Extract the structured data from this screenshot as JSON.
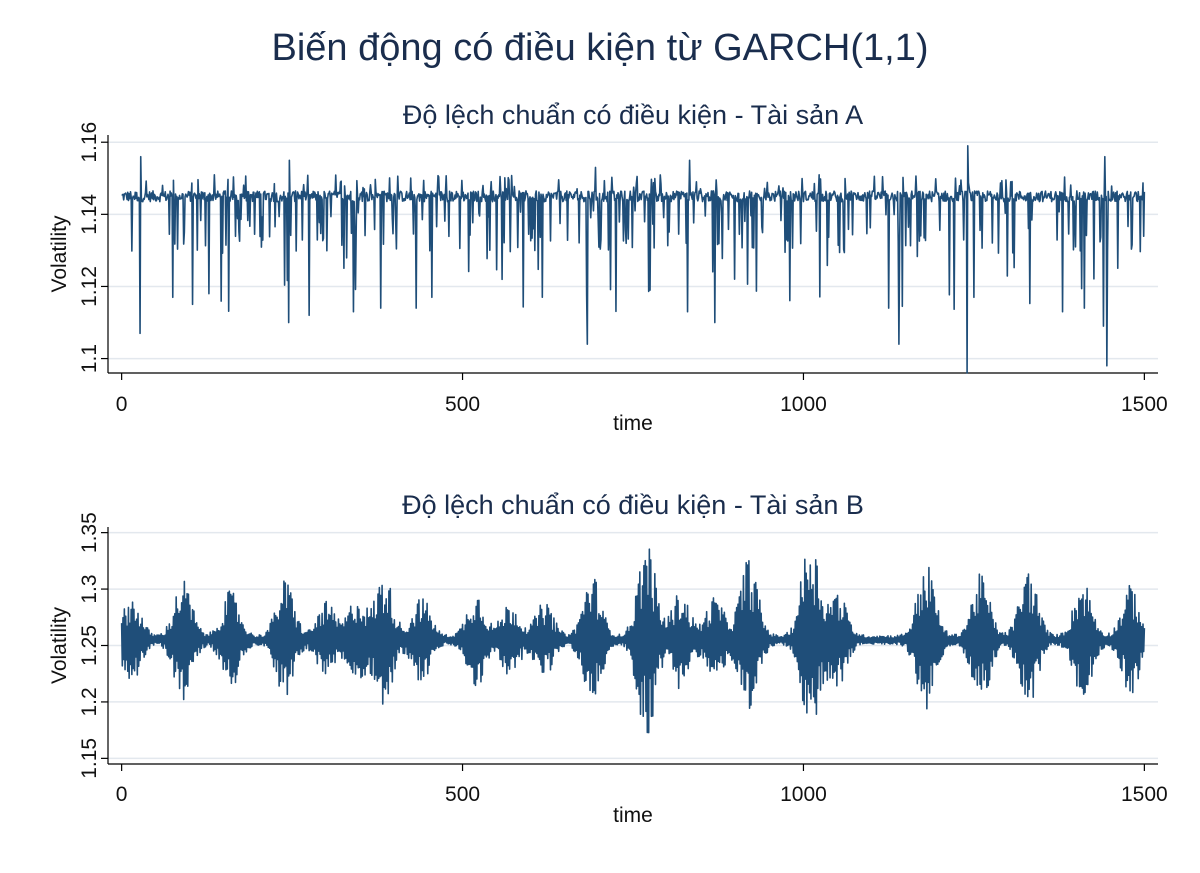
{
  "title": "Biến động có điều kiện từ GARCH(1,1)",
  "chart_data": [
    {
      "type": "line",
      "title": "Độ lệch chuẩn có điều kiện - Tài sản A",
      "xlabel": "time",
      "ylabel": "Volatility",
      "xlim": [
        -20,
        1520
      ],
      "ylim": [
        1.096,
        1.162
      ],
      "xticks": [
        0,
        500,
        1000,
        1500
      ],
      "xtick_labels": [
        "0",
        "500",
        "1000",
        "1500"
      ],
      "yticks": [
        1.1,
        1.12,
        1.14,
        1.16
      ],
      "ytick_labels": [
        "1.1",
        "1.12",
        "1.14",
        "1.16"
      ],
      "grid": true,
      "color": "#1f4e79",
      "baseline": 1.145,
      "spikes": [
        {
          "x": 27,
          "y": 1.107
        },
        {
          "x": 28,
          "y": 1.156
        },
        {
          "x": 75,
          "y": 1.117
        },
        {
          "x": 128,
          "y": 1.118
        },
        {
          "x": 245,
          "y": 1.11
        },
        {
          "x": 246,
          "y": 1.155
        },
        {
          "x": 275,
          "y": 1.112
        },
        {
          "x": 340,
          "y": 1.113
        },
        {
          "x": 380,
          "y": 1.114
        },
        {
          "x": 432,
          "y": 1.114
        },
        {
          "x": 455,
          "y": 1.117
        },
        {
          "x": 683,
          "y": 1.104
        },
        {
          "x": 695,
          "y": 1.153
        },
        {
          "x": 775,
          "y": 1.119
        },
        {
          "x": 830,
          "y": 1.113
        },
        {
          "x": 833,
          "y": 1.155
        },
        {
          "x": 870,
          "y": 1.11
        },
        {
          "x": 1080,
          "y": 1.146
        },
        {
          "x": 1125,
          "y": 1.114
        },
        {
          "x": 1140,
          "y": 1.104
        },
        {
          "x": 1240,
          "y": 1.096
        },
        {
          "x": 1241,
          "y": 1.159
        },
        {
          "x": 1250,
          "y": 1.117
        },
        {
          "x": 1380,
          "y": 1.113
        },
        {
          "x": 1440,
          "y": 1.109
        },
        {
          "x": 1442,
          "y": 1.156
        },
        {
          "x": 1445,
          "y": 1.098
        }
      ]
    },
    {
      "type": "line",
      "title": "Độ lệch chuẩn có điều kiện - Tài sản B",
      "xlabel": "time",
      "ylabel": "Volatility",
      "xlim": [
        -20,
        1520
      ],
      "ylim": [
        1.145,
        1.355
      ],
      "xticks": [
        0,
        500,
        1000,
        1500
      ],
      "xtick_labels": [
        "0",
        "500",
        "1000",
        "1500"
      ],
      "yticks": [
        1.15,
        1.2,
        1.25,
        1.3,
        1.35
      ],
      "ytick_labels": [
        "1.15",
        "1.2",
        "1.25",
        "1.3",
        "1.35"
      ],
      "grid": true,
      "color": "#1f4e79",
      "baseline": 1.255,
      "bursts": [
        {
          "x": 15,
          "amp": 0.035
        },
        {
          "x": 90,
          "amp": 0.05
        },
        {
          "x": 160,
          "amp": 0.04
        },
        {
          "x": 240,
          "amp": 0.05
        },
        {
          "x": 300,
          "amp": 0.03
        },
        {
          "x": 345,
          "amp": 0.035
        },
        {
          "x": 385,
          "amp": 0.055
        },
        {
          "x": 440,
          "amp": 0.035
        },
        {
          "x": 520,
          "amp": 0.04
        },
        {
          "x": 570,
          "amp": 0.03
        },
        {
          "x": 620,
          "amp": 0.03
        },
        {
          "x": 690,
          "amp": 0.055
        },
        {
          "x": 770,
          "amp": 0.085
        },
        {
          "x": 820,
          "amp": 0.04
        },
        {
          "x": 870,
          "amp": 0.035
        },
        {
          "x": 920,
          "amp": 0.07
        },
        {
          "x": 1010,
          "amp": 0.09
        },
        {
          "x": 1050,
          "amp": 0.04
        },
        {
          "x": 1180,
          "amp": 0.065
        },
        {
          "x": 1260,
          "amp": 0.055
        },
        {
          "x": 1330,
          "amp": 0.06
        },
        {
          "x": 1410,
          "amp": 0.05
        },
        {
          "x": 1480,
          "amp": 0.045
        }
      ]
    }
  ]
}
